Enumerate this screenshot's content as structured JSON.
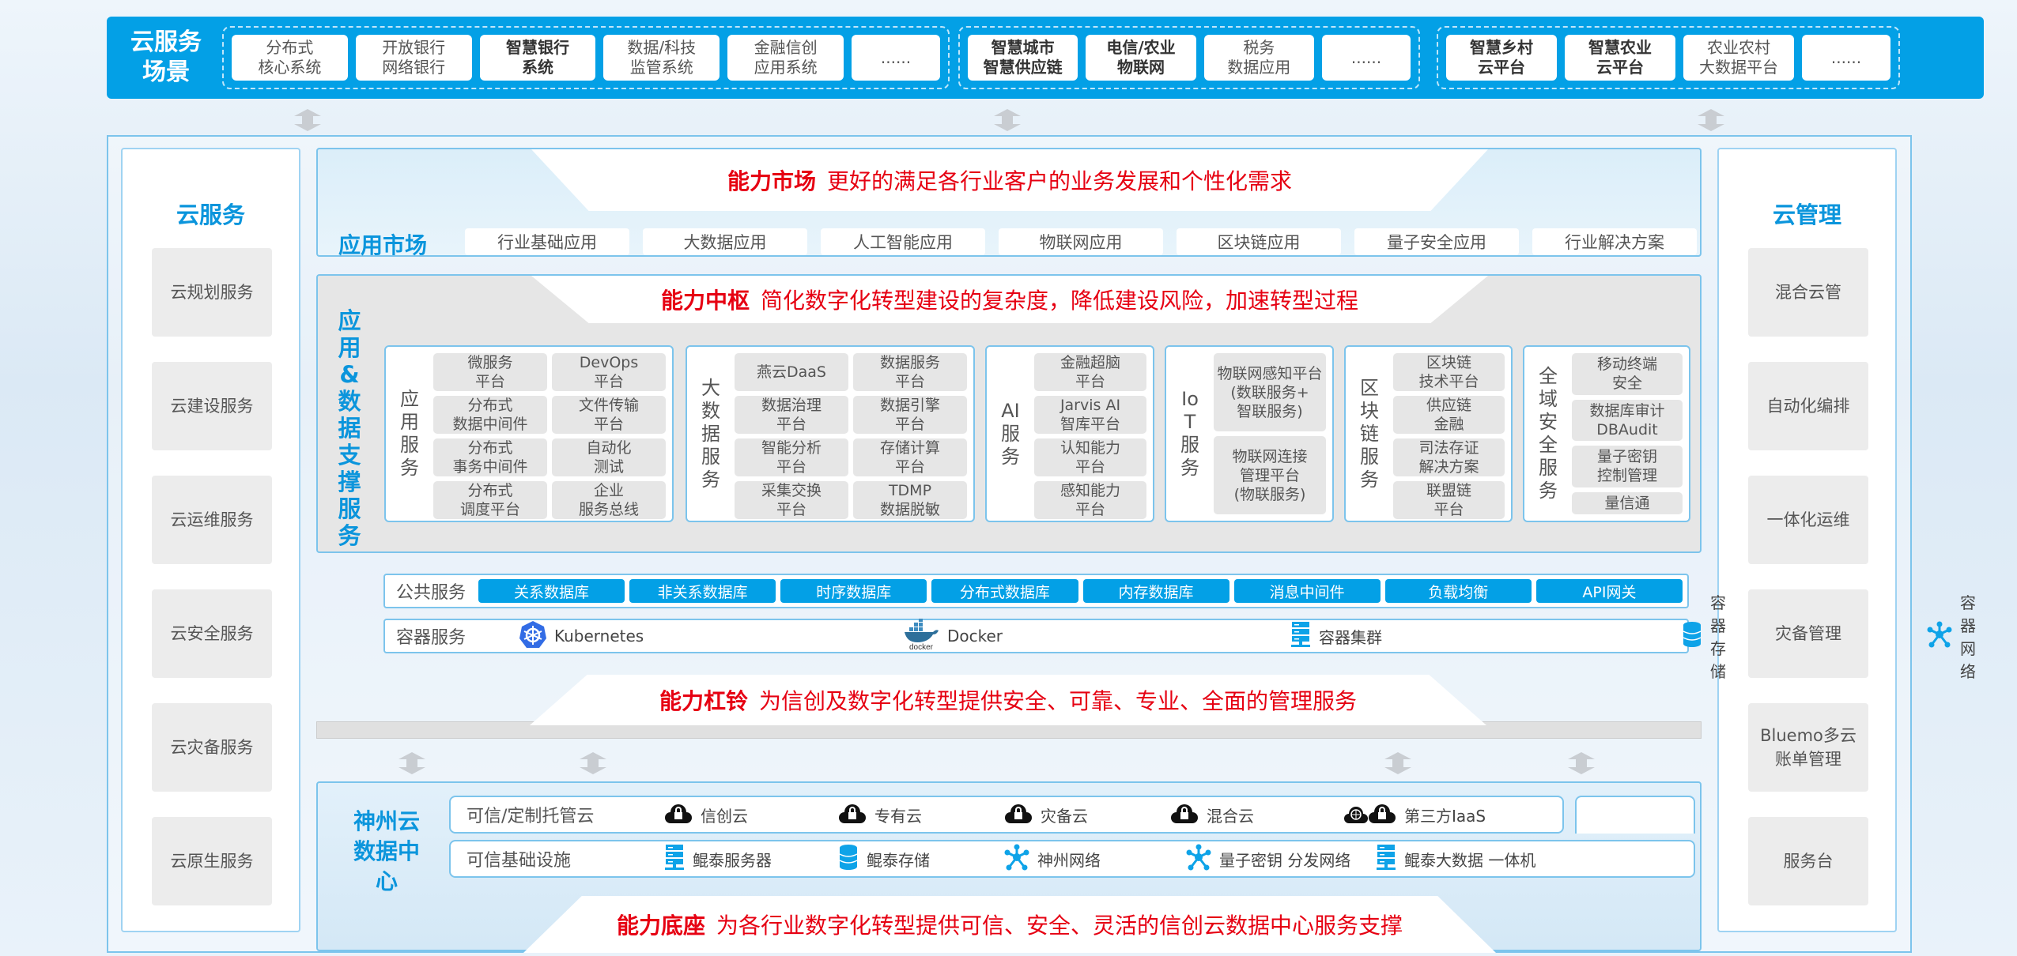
{
  "banner": {
    "title": "云服务\n场景",
    "groups": [
      [
        {
          "t": "分布式\n核心系统"
        },
        {
          "t": "开放银行\n网络银行"
        },
        {
          "t": "智慧银行\n系统",
          "b": true
        },
        {
          "t": "数据/科技\n监管系统"
        },
        {
          "t": "金融信创\n应用系统"
        },
        {
          "t": "......",
          "d": true
        }
      ],
      [
        {
          "t": "智慧城市\n智慧供应链",
          "b": true
        },
        {
          "t": "电信/农业\n物联网",
          "b": true
        },
        {
          "t": "税务\n数据应用"
        },
        {
          "t": "......",
          "d": true
        }
      ],
      [
        {
          "t": "智慧乡村\n云平台",
          "b": true
        },
        {
          "t": "智慧农业\n云平台",
          "b": true
        },
        {
          "t": "农业农村\n大数据平台"
        },
        {
          "t": "......",
          "d": true
        }
      ]
    ]
  },
  "left_panel": {
    "title": "云服务",
    "items": [
      "云规划服务",
      "云建设服务",
      "云运维服务",
      "云安全服务",
      "云灾备服务",
      "云原生服务"
    ]
  },
  "right_panel": {
    "title": "云管理",
    "items": [
      "混合云管",
      "自动化编排",
      "一体化运维",
      "灾备管理",
      "Bluemo多云\n账单管理",
      "服务台"
    ]
  },
  "market": {
    "heading_bold": "能力市场",
    "heading": "更好的满足各行业客户的业务发展和个性化需求",
    "label": "应用市场",
    "items": [
      "行业基础应用",
      "大数据应用",
      "人工智能应用",
      "物联网应用",
      "区块链应用",
      "量子安全应用",
      "行业解决方案"
    ]
  },
  "hub": {
    "heading_bold": "能力中枢",
    "heading": "简化数字化转型建设的复杂度，降低建设风险，加速转型过程",
    "label": "应用&数据支撑服务",
    "groups": [
      {
        "label": "应用服务",
        "cols": 2,
        "cells": [
          "微服务\n平台",
          "DevOps\n平台",
          "分布式\n数据中间件",
          "文件传输\n平台",
          "分布式\n事务中间件",
          "自动化\n测试",
          "分布式\n调度平台",
          "企业\n服务总线"
        ]
      },
      {
        "label": "大数据服务",
        "cols": 2,
        "cells": [
          "燕云DaaS",
          "数据服务\n平台",
          "数据治理\n平台",
          "数据引擎\n平台",
          "智能分析\n平台",
          "存储计算\n平台",
          "采集交换\n平台",
          "TDMP\n数据脱敏"
        ]
      },
      {
        "label": "AI服务",
        "cols": 1,
        "cells": [
          "金融超脑\n平台",
          "Jarvis AI\n智库平台",
          "认知能力\n平台",
          "感知能力\n平台"
        ]
      },
      {
        "label": "IoT服务",
        "cols": 1,
        "cells": [
          "物联网感知平台\n(数联服务+\n智联服务)",
          "物联网连接\n管理平台\n(物联服务)"
        ]
      },
      {
        "label": "区块链服务",
        "cols": 1,
        "cells": [
          "区块链\n技术平台",
          "供应链\n金融",
          "司法存证\n解决方案",
          "联盟链\n平台"
        ]
      },
      {
        "label": "全域安全服务",
        "cols": 1,
        "cells": [
          "移动终端\n安全",
          "数据库审计\nDBAudit",
          "量子密钥\n控制管理",
          "量信通"
        ]
      }
    ]
  },
  "public_services": {
    "label": "公共服务",
    "items": [
      "关系数据库",
      "非关系数据库",
      "时序数据库",
      "分布式数据库",
      "内存数据库",
      "消息中间件",
      "负载均衡",
      "API网关"
    ]
  },
  "container_services": {
    "label": "容器服务",
    "items": [
      {
        "icon": "kubernetes-icon",
        "t": "Kubernetes"
      },
      {
        "icon": "docker-icon",
        "t": "Docker",
        "sub": "docker"
      },
      {
        "icon": "server-icon",
        "t": "容器集群"
      },
      {
        "icon": "database-icon",
        "t": "容器存储"
      },
      {
        "icon": "network-icon",
        "t": "容器网络"
      }
    ]
  },
  "barbell": {
    "heading_bold": "能力杠铃",
    "heading": "为信创及数字化转型提供安全、可靠、专业、全面的管理服务"
  },
  "datacenter": {
    "label": "神州云\n数据中心",
    "hosted": {
      "label": "可信/定制托管云",
      "items": [
        {
          "icon": "cloud-lock-icon",
          "t": "信创云"
        },
        {
          "icon": "cloud-lock-icon",
          "t": "专有云"
        },
        {
          "icon": "cloud-lock-icon",
          "t": "灾备云"
        },
        {
          "icon": "cloud-lock-icon",
          "t": "混合云"
        },
        {
          "icon": "globe-cloud-lock-icon",
          "t": "第三方IaaS"
        }
      ]
    },
    "infra": {
      "label": "可信基础设施",
      "items": [
        {
          "icon": "server-icon",
          "t": "鲲泰服务器"
        },
        {
          "icon": "database-icon",
          "t": "鲲泰存储"
        },
        {
          "icon": "network-icon",
          "t": "神州网络"
        },
        {
          "icon": "network-icon",
          "t": "量子密钥 分发网络"
        },
        {
          "icon": "server-icon",
          "t": "鲲泰大数据 一体机"
        }
      ]
    }
  },
  "base": {
    "heading_bold": "能力底座",
    "heading": "为各行业数字化转型提供可信、安全、灵活的信创云数据中心服务支撑"
  },
  "colors": {
    "accent": "#03a0e6",
    "title_blue": "#0b95dc",
    "heading_red": "#e60012",
    "cell_gray": "#e6e6e6"
  }
}
